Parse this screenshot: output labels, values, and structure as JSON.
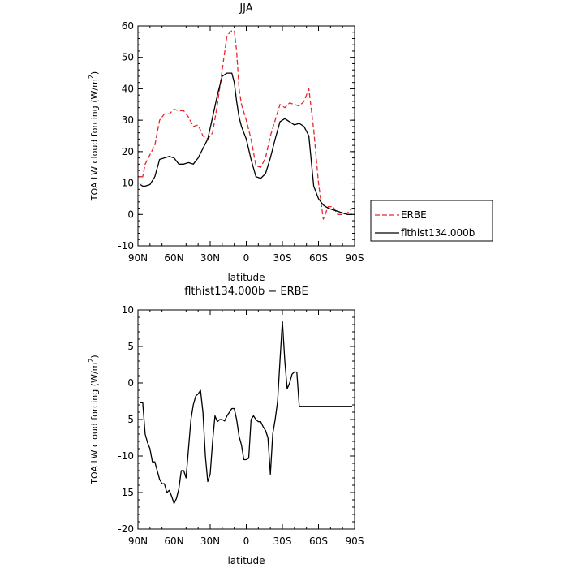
{
  "chart_data": [
    {
      "type": "line",
      "title": "JJA",
      "xlabel": "latitude",
      "ylabel_main": "TOA LW cloud forcing (W/m",
      "ylabel_sup": "2",
      "ylabel_end": ")",
      "xlim": [
        90,
        -90
      ],
      "ylim": [
        -10,
        60
      ],
      "x_ticks": [
        90,
        60,
        30,
        0,
        -30,
        -60,
        -90
      ],
      "x_tick_labels": [
        "90N",
        "60N",
        "30N",
        "0",
        "30S",
        "60S",
        "90S"
      ],
      "y_ticks": [
        -10,
        0,
        10,
        20,
        30,
        40,
        50,
        60
      ],
      "y_tick_labels": [
        "-10",
        "0",
        "10",
        "20",
        "30",
        "40",
        "50",
        "60"
      ],
      "legend": "outside-right",
      "series": [
        {
          "name": "ERBE",
          "color": "#e8262b",
          "dash": "dashed",
          "x": [
            88,
            86,
            84,
            80,
            76,
            72,
            68,
            64,
            60,
            56,
            52,
            48,
            44,
            40,
            36,
            32,
            28,
            24,
            20,
            16,
            12,
            10,
            8,
            6,
            4,
            0,
            -4,
            -8,
            -12,
            -16,
            -20,
            -24,
            -28,
            -32,
            -36,
            -40,
            -44,
            -48,
            -52,
            -56,
            -60,
            -64,
            -68,
            -72,
            -76,
            -80,
            -84,
            -88
          ],
          "values": [
            12,
            12,
            16,
            19,
            22,
            30,
            32,
            32,
            33.5,
            33,
            33,
            31,
            28,
            28.5,
            25,
            24,
            26,
            35,
            46,
            57,
            58.5,
            58.5,
            52,
            40,
            35,
            30,
            24,
            15.5,
            15,
            18,
            25,
            30,
            35,
            34,
            35.5,
            35,
            34.5,
            36,
            40,
            27,
            10,
            -1.5,
            2.5,
            2.5,
            0,
            0,
            0.5,
            2
          ]
        },
        {
          "name": "flthist134.000b",
          "color": "#000000",
          "dash": "solid",
          "x": [
            88,
            86,
            84,
            80,
            76,
            72,
            68,
            64,
            60,
            56,
            52,
            48,
            44,
            40,
            36,
            32,
            28,
            24,
            20,
            16,
            12,
            10,
            8,
            6,
            4,
            0,
            -4,
            -8,
            -12,
            -16,
            -20,
            -24,
            -28,
            -32,
            -36,
            -40,
            -44,
            -48,
            -52,
            -56,
            -60,
            -64,
            -68,
            -72,
            -76,
            -80,
            -84,
            -88
          ],
          "values": [
            9.5,
            9,
            9,
            9.5,
            12,
            17.5,
            18,
            18.5,
            18,
            16,
            16,
            16.5,
            16,
            18,
            21,
            24,
            31,
            38,
            44,
            45,
            45,
            42,
            36,
            31,
            28,
            24,
            17.5,
            12,
            11.5,
            13,
            18,
            24,
            29.5,
            30.5,
            29.5,
            28.5,
            29,
            28,
            25,
            9,
            5,
            3,
            2,
            1.5,
            1,
            0.5,
            0,
            0
          ]
        }
      ]
    },
    {
      "type": "line",
      "title": "flthist134.000b − ERBE",
      "xlabel": "latitude",
      "ylabel_main": "TOA LW cloud forcing (W/m",
      "ylabel_sup": "2",
      "ylabel_end": ")",
      "xlim": [
        90,
        -90
      ],
      "ylim": [
        -20,
        10
      ],
      "x_ticks": [
        90,
        60,
        30,
        0,
        -30,
        -60,
        -90
      ],
      "x_tick_labels": [
        "90N",
        "60N",
        "30N",
        "0",
        "30S",
        "60S",
        "90S"
      ],
      "y_ticks": [
        -20,
        -15,
        -10,
        -5,
        0,
        5,
        10
      ],
      "y_tick_labels": [
        "-20",
        "-15",
        "-10",
        "-5",
        "0",
        "5",
        "10"
      ],
      "series": [
        {
          "color": "#000000",
          "dash": "solid",
          "x": [
            88,
            86,
            84,
            82,
            80,
            78,
            76,
            74,
            72,
            70,
            68,
            66,
            64,
            62,
            60,
            58,
            56,
            54,
            52,
            50,
            48,
            46,
            44,
            42,
            40,
            38,
            36,
            34,
            32,
            30,
            28,
            26,
            24,
            22,
            20,
            18,
            16,
            14,
            12,
            10,
            8,
            6,
            4,
            2,
            0,
            -2,
            -4,
            -6,
            -8,
            -10,
            -12,
            -14,
            -16,
            -18,
            -20,
            -22,
            -24,
            -26,
            -28,
            -30,
            -32,
            -34,
            -36,
            -38,
            -40,
            -42,
            -44,
            -46,
            -48,
            -50,
            -52,
            -54,
            -56,
            -58,
            -60,
            -62,
            -64,
            -66,
            -68,
            -70,
            -72,
            -74,
            -76,
            -78,
            -80,
            -82,
            -84,
            -86,
            -88
          ],
          "values": [
            -2.7,
            -2.7,
            -7,
            -8.2,
            -9,
            -10.8,
            -10.8,
            -12,
            -13.2,
            -13.8,
            -13.8,
            -15,
            -14.7,
            -15.5,
            -16.5,
            -15.8,
            -14.5,
            -12,
            -12,
            -13,
            -9,
            -5,
            -3,
            -1.8,
            -1.5,
            -1,
            -4,
            -10,
            -13.5,
            -12.5,
            -8,
            -4.5,
            -5.3,
            -5,
            -5,
            -5.2,
            -4.5,
            -4,
            -3.5,
            -3.5,
            -5,
            -7.3,
            -8.5,
            -10.5,
            -10.5,
            -10.3,
            -5,
            -4.5,
            -5,
            -5.3,
            -5.3,
            -6,
            -6.5,
            -7.5,
            -12.5,
            -7,
            -5,
            -2.5,
            3,
            8.5,
            3,
            -0.8,
            0,
            1.2,
            1.5,
            1.5,
            -3.2,
            -3.2,
            -3.2,
            -3.2,
            -3.2,
            -3.2,
            -3.2,
            -3.2,
            -3.2,
            -3.2,
            -3.2,
            -3.2,
            -3.2,
            -3.2,
            -3.2,
            -3.2,
            -3.2,
            -3.2,
            -3.2,
            -3.2,
            -3.2,
            -3.2,
            -3.2
          ]
        }
      ]
    }
  ]
}
